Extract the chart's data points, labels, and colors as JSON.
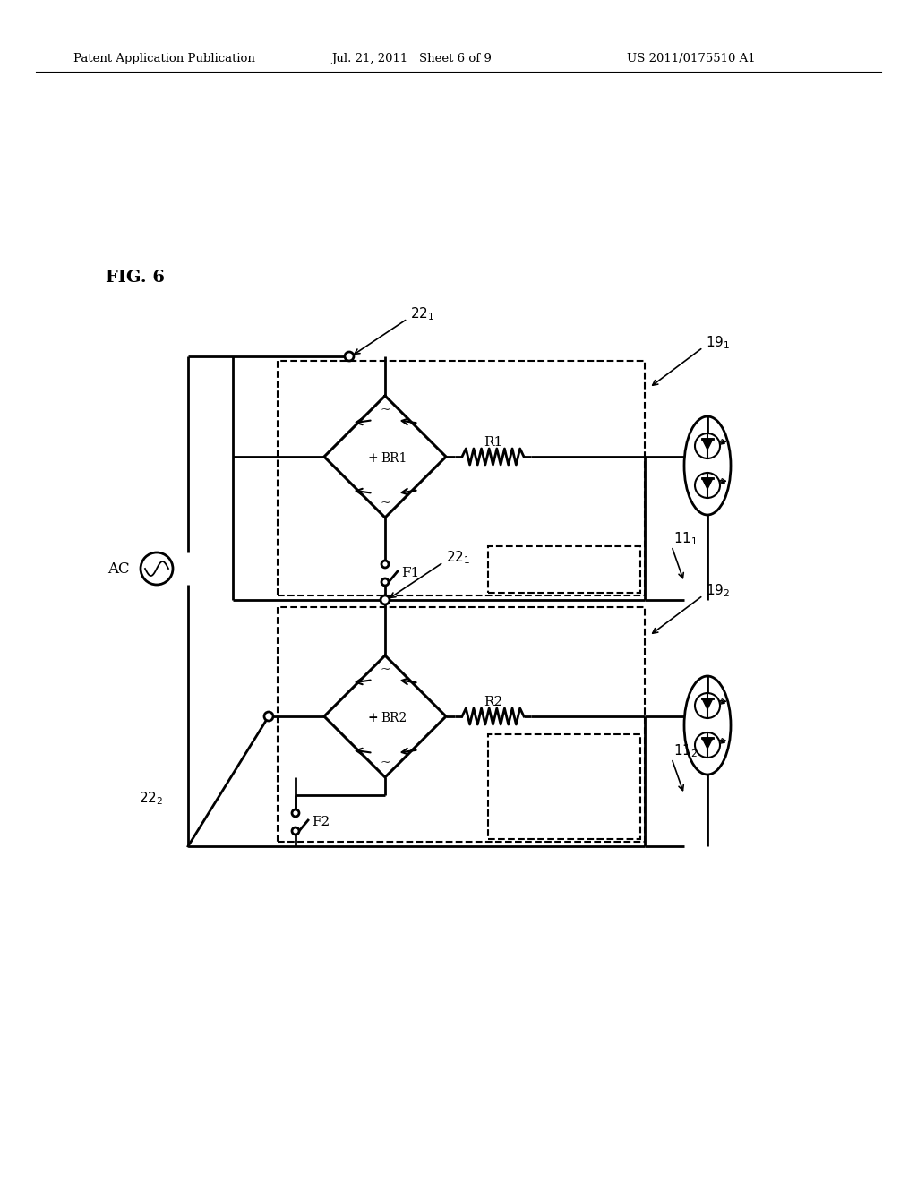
{
  "bg_color": "#ffffff",
  "header_left": "Patent Application Publication",
  "header_mid": "Jul. 21, 2011   Sheet 6 of 9",
  "header_right": "US 2011/0175510 A1",
  "fig_label": "FIG. 6"
}
